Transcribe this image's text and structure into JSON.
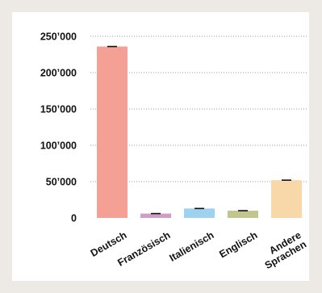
{
  "chart_data": {
    "type": "bar",
    "categories": [
      "Deutsch",
      "Französisch",
      "Italienisch",
      "Englisch",
      "Andere Sprachen"
    ],
    "category_lines": [
      [
        "Deutsch"
      ],
      [
        "Französisch"
      ],
      [
        "Italienisch"
      ],
      [
        "Englisch"
      ],
      [
        "Andere",
        "Sprachen"
      ]
    ],
    "values": [
      236000,
      6000,
      13000,
      10000,
      52000
    ],
    "colors": [
      "#f4a094",
      "#cf9ec7",
      "#9fd2ee",
      "#c2c58d",
      "#f8d7a8"
    ],
    "error_cap_color": "#111111",
    "grid_color": "#9a9a9a",
    "ylim": [
      0,
      250000
    ],
    "yticks": [
      0,
      50000,
      100000,
      150000,
      200000,
      250000
    ],
    "ytick_labels": [
      "0",
      "50’000",
      "100’000",
      "150’000",
      "200’000",
      "250’000"
    ],
    "grid": true,
    "title": "",
    "xlabel": "",
    "ylabel": ""
  }
}
